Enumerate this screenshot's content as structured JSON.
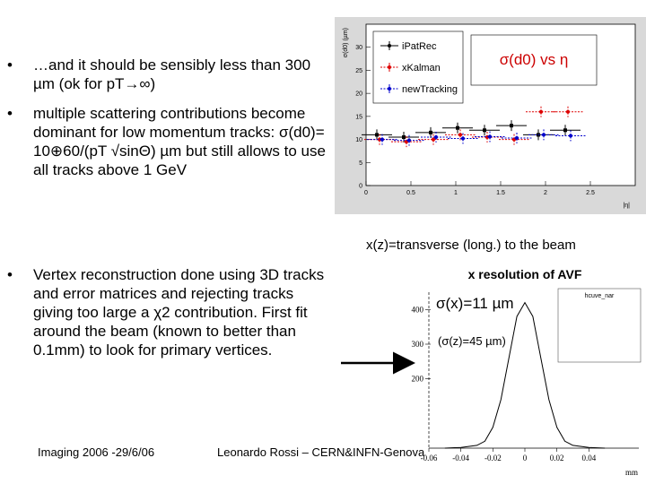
{
  "slide": {
    "bullet_marker": "•",
    "bullet1": "…and it should be sensibly less than 300 µm (ok for pT→∞)",
    "bullet2": "multiple scattering contributions become dominant for low momentum tracks: σ(d0)= 10⊕60/(pT √sinΘ) µm but still allows to use all tracks above 1 GeV",
    "bullet3": "Vertex reconstruction done using 3D tracks and error matrices and rejecting tracks giving too large a χ2 contribution. First fit around the beam (known to better than 0.1mm) to look for primary vertices.",
    "caption_z": "x(z)=transverse (long.) to the beam",
    "footer_left": "Imaging 2006 -29/6/06",
    "footer_center": "Leonardo Rossi – CERN&INFN-Genova"
  },
  "chart_data": [
    {
      "type": "scatter",
      "title": "σ(d0) vs η",
      "ylabel": "σ(d0) (µm)",
      "xlabel": "|η|",
      "xlim": [
        0,
        3
      ],
      "ylim": [
        0,
        35
      ],
      "x_ticks": [
        "0",
        "0.5",
        "1",
        "1.5",
        "2",
        "2.5"
      ],
      "y_ticks": [
        "0",
        "5",
        "10",
        "15",
        "20",
        "25",
        "30"
      ],
      "legend": [
        "iPatRec",
        "xKalman",
        "newTracking"
      ],
      "legend_placement": "top-left",
      "series": [
        {
          "name": "iPatRec",
          "color": "#000000",
          "x": [
            0.15,
            0.45,
            0.75,
            1.05,
            1.35,
            1.65,
            1.95,
            2.25
          ],
          "y": [
            11,
            10.5,
            11.5,
            12.5,
            12,
            13,
            11,
            12
          ]
        },
        {
          "name": "xKalman",
          "color": "#dd0000",
          "x": [
            0.15,
            0.45,
            0.75,
            1.05,
            1.35,
            1.65,
            1.95,
            2.25
          ],
          "y": [
            10,
            9.5,
            10,
            11,
            10.5,
            10,
            16,
            16
          ]
        },
        {
          "name": "newTracking",
          "color": "#0000cc",
          "x": [
            0.15,
            0.45,
            0.75,
            1.05,
            1.35,
            1.65,
            1.95,
            2.25
          ],
          "y": [
            10,
            9.8,
            10.5,
            10.2,
            10.6,
            10.3,
            11,
            10.8
          ]
        }
      ]
    },
    {
      "type": "line",
      "title": "x resolution of AVF",
      "xlabel": "mm",
      "xlim": [
        -0.06,
        0.06
      ],
      "ylim": [
        0,
        450
      ],
      "x_ticks": [
        "-0.06",
        "-0.04",
        "-0.02",
        "0",
        "0.02",
        "0.04"
      ],
      "y_ticks": [
        "200",
        "300",
        "400"
      ],
      "annotation_main": "σ(x)=11 µm",
      "annotation_sub": "(σ(z)=45 µm)",
      "stats_title": "hcuve_nar",
      "series": [
        {
          "name": "x residual",
          "x": [
            -0.05,
            -0.04,
            -0.03,
            -0.025,
            -0.02,
            -0.015,
            -0.01,
            -0.005,
            0,
            0.005,
            0.01,
            0.015,
            0.02,
            0.025,
            0.03,
            0.04,
            0.05
          ],
          "y": [
            0,
            2,
            8,
            20,
            60,
            140,
            260,
            380,
            420,
            380,
            260,
            140,
            60,
            20,
            8,
            2,
            0
          ]
        }
      ]
    }
  ]
}
